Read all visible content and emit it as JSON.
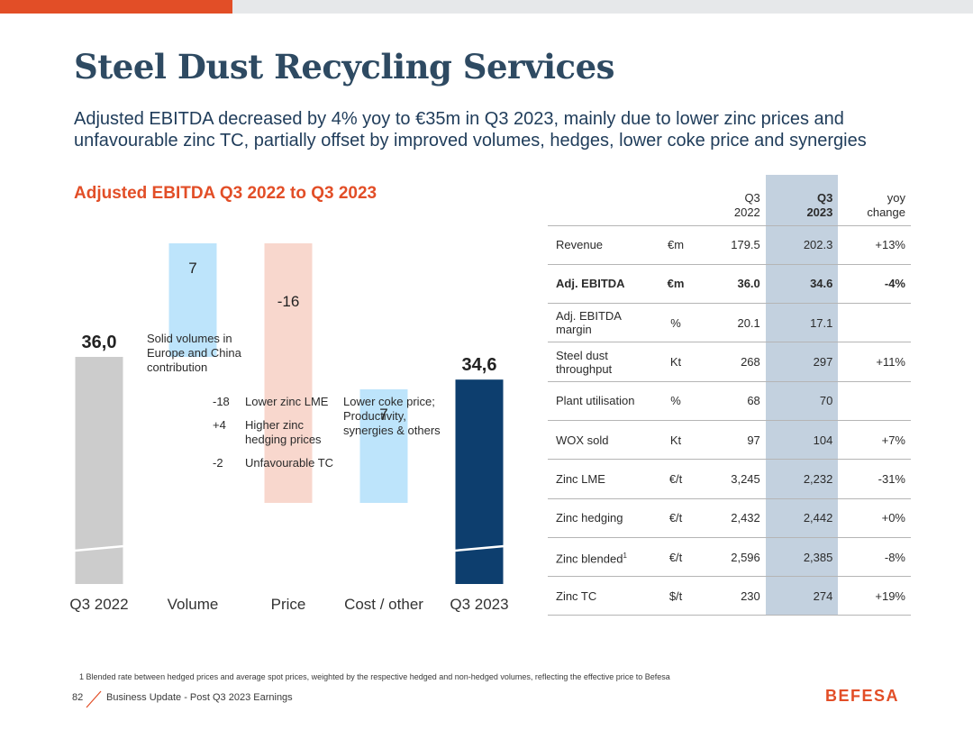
{
  "colors": {
    "accent": "#e24e27",
    "title": "#2e4a62",
    "navy": "#0d3e6e",
    "grey_bar": "#cccccc",
    "pos_bar": "#bde4fb",
    "neg_bar": "#f8d7cd",
    "highlight_col": "#c3d1df"
  },
  "header": {
    "title": "Steel Dust Recycling Services",
    "subtitle": "Adjusted EBITDA decreased by 4% yoy to €35m in Q3 2023, mainly due to lower zinc prices and unfavourable zinc TC, partially offset by improved volumes, hedges, lower coke price and synergies"
  },
  "chart_title": "Adjusted EBITDA Q3 2022 to Q3 2023",
  "chart_data": {
    "type": "bar",
    "subtype": "waterfall",
    "title": "Adjusted EBITDA Q3 2022 to Q3 2023",
    "categories": [
      "Q3 2022",
      "Volume",
      "Price",
      "Cost / other",
      "Q3 2023"
    ],
    "values": [
      36.0,
      7,
      -16,
      7,
      34.6
    ],
    "value_labels": [
      "36,0",
      "7",
      "-16",
      "7",
      "34,6"
    ],
    "kinds": [
      "total",
      "delta",
      "delta",
      "delta",
      "total"
    ],
    "axis_break": true,
    "xlabel": "",
    "ylabel": ""
  },
  "annotations": {
    "volume": "Solid volumes in Europe and China contribution",
    "price_items": [
      {
        "value": "-18",
        "label": "Lower zinc LME"
      },
      {
        "value": "+4",
        "label": "Higher zinc hedging prices"
      },
      {
        "value": "-2",
        "label": "Unfavourable TC"
      }
    ],
    "cost": "Lower coke price; Productivity, synergies & others"
  },
  "table": {
    "headers": {
      "col_q3_2022": "Q3 2022",
      "col_q3_2023": "Q3 2023",
      "col_yoy": "yoy change"
    },
    "rows": [
      {
        "label": "Revenue",
        "unit": "€m",
        "q3_2022": "179.5",
        "q3_2023": "202.3",
        "yoy": "+13%",
        "bold": false
      },
      {
        "label": "Adj. EBITDA",
        "unit": "€m",
        "q3_2022": "36.0",
        "q3_2023": "34.6",
        "yoy": "-4%",
        "bold": true
      },
      {
        "label": "Adj. EBITDA margin",
        "unit": "%",
        "q3_2022": "20.1",
        "q3_2023": "17.1",
        "yoy": "",
        "bold": false
      },
      {
        "label": "Steel dust throughput",
        "unit": "Kt",
        "q3_2022": "268",
        "q3_2023": "297",
        "yoy": "+11%",
        "bold": false
      },
      {
        "label": "Plant utilisation",
        "unit": "%",
        "q3_2022": "68",
        "q3_2023": "70",
        "yoy": "",
        "bold": false
      },
      {
        "label": "WOX sold",
        "unit": "Kt",
        "q3_2022": "97",
        "q3_2023": "104",
        "yoy": "+7%",
        "bold": false
      },
      {
        "label": "Zinc LME",
        "unit": "€/t",
        "q3_2022": "3,245",
        "q3_2023": "2,232",
        "yoy": "-31%",
        "bold": false
      },
      {
        "label": "Zinc hedging",
        "unit": "€/t",
        "q3_2022": "2,432",
        "q3_2023": "2,442",
        "yoy": "+0%",
        "bold": false
      },
      {
        "label": "Zinc blended",
        "sup": "1",
        "unit": "€/t",
        "q3_2022": "2,596",
        "q3_2023": "2,385",
        "yoy": "-8%",
        "bold": false
      },
      {
        "label": "Zinc TC",
        "unit": "$/t",
        "q3_2022": "230",
        "q3_2023": "274",
        "yoy": "+19%",
        "bold": false
      }
    ]
  },
  "footnote": "1  Blended rate between hedged prices and average spot prices, weighted by the respective hedged and non-hedged volumes, reflecting the effective price to Befesa",
  "footer": {
    "page_number": "82",
    "text": "Business Update - Post Q3 2023 Earnings",
    "logo": "BEFESA"
  }
}
